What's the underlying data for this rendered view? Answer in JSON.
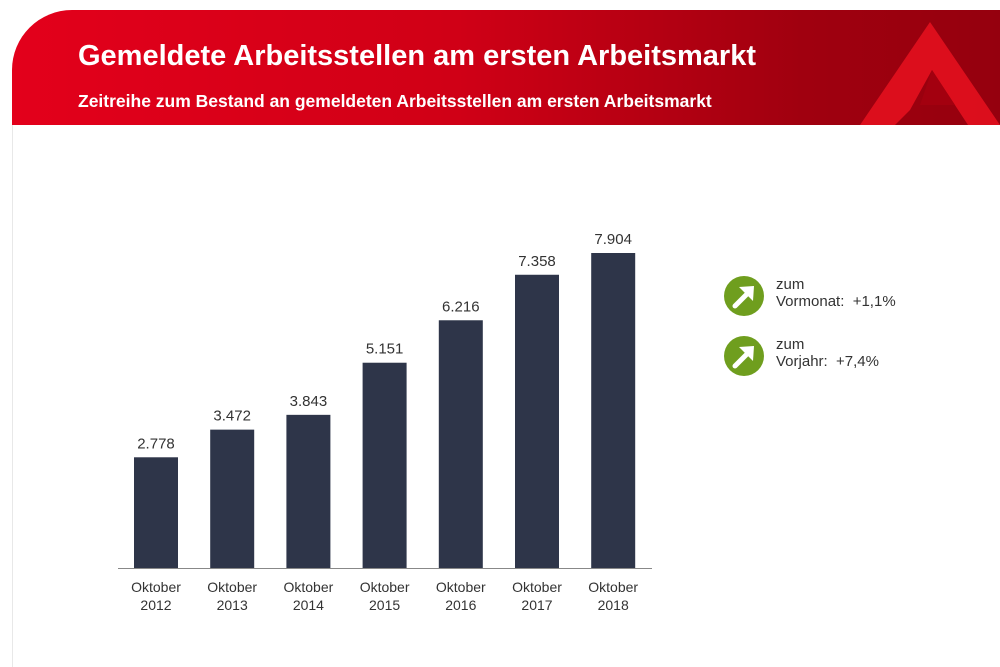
{
  "header": {
    "title": "Gemeldete Arbeitsstellen am ersten Arbeitsmarkt",
    "subtitle": "Zeitreihe zum Bestand an gemeldeten Arbeitsstellen am ersten Arbeitsmarkt"
  },
  "kpis": [
    {
      "line1": "zum",
      "line2": "Vormonat:  +1,1%",
      "icon": "arrow-up-right-icon"
    },
    {
      "line1": "zum",
      "line2": "Vorjahr:  +7,4%",
      "icon": "arrow-up-right-icon"
    }
  ],
  "colors": {
    "bar": "#2e3549",
    "header_red": "#e3001b",
    "header_dark": "#95000e",
    "trend_green": "#6f9e1e"
  },
  "chart_data": {
    "type": "bar",
    "categories": [
      [
        "Oktober",
        "2012"
      ],
      [
        "Oktober",
        "2013"
      ],
      [
        "Oktober",
        "2014"
      ],
      [
        "Oktober",
        "2015"
      ],
      [
        "Oktober",
        "2016"
      ],
      [
        "Oktober",
        "2017"
      ],
      [
        "Oktober",
        "2018"
      ]
    ],
    "values": [
      2.778,
      3.472,
      3.843,
      5.151,
      6.216,
      7.358,
      7.904
    ],
    "labels": [
      "2.778",
      "3.472",
      "3.843",
      "5.151",
      "6.216",
      "7.358",
      "7.904"
    ],
    "ylim": [
      0,
      7.904
    ],
    "grid": false
  }
}
